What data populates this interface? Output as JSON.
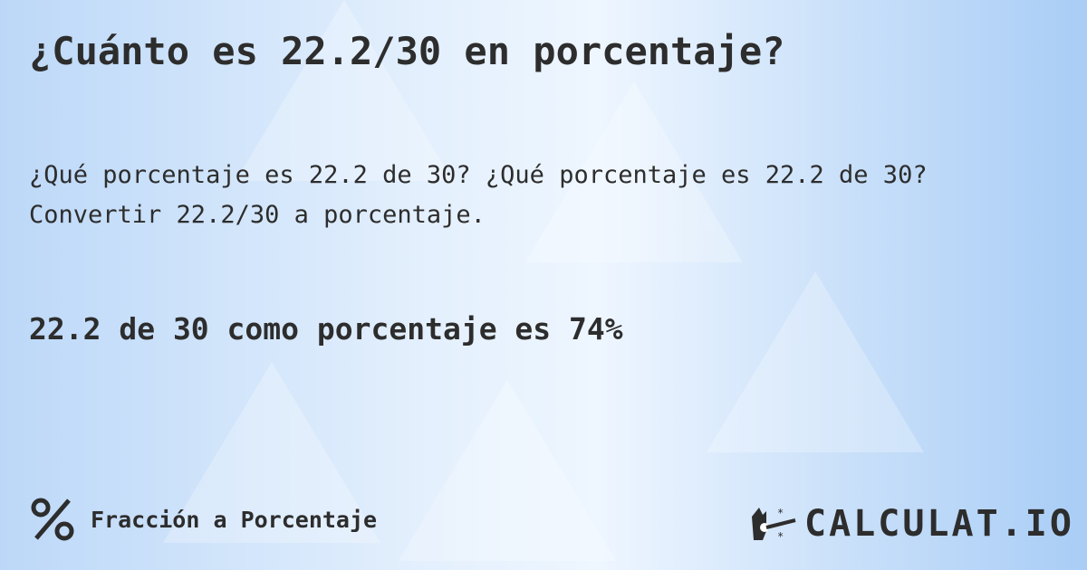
{
  "title": "¿Cuánto es 22.2/30 en porcentaje?",
  "subtitle": "¿Qué porcentaje es 22.2 de 30? ¿Qué porcentaje es 22.2 de 30? Convertir 22.2/30 a porcentaje.",
  "answer": "22.2 de 30 como porcentaje es 74%",
  "category": {
    "icon": "percent-icon",
    "label": "Fracción a Porcentaje"
  },
  "logo": {
    "text": "CALCULAT.IO",
    "icon": "magic-hand-icon"
  }
}
